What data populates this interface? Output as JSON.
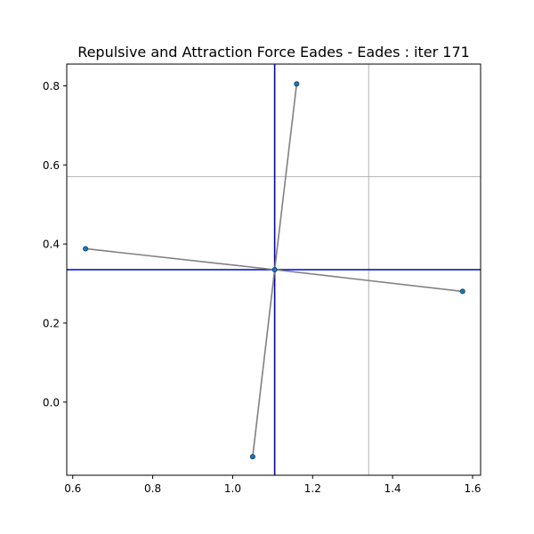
{
  "chart_data": {
    "type": "scatter",
    "title": "Repulsive and Attraction Force Eades - Eades : iter 171",
    "xlabel": "",
    "ylabel": "",
    "xlim": [
      0.585,
      1.62
    ],
    "ylim": [
      -0.185,
      0.855
    ],
    "x_ticks": [
      0.6,
      0.8,
      1.0,
      1.2,
      1.4,
      1.6
    ],
    "x_tick_labels": [
      "0.6",
      "0.8",
      "1.0",
      "1.2",
      "1.4",
      "1.6"
    ],
    "y_ticks": [
      0.0,
      0.2,
      0.4,
      0.6,
      0.8
    ],
    "y_tick_labels": [
      "0.0",
      "0.2",
      "0.4",
      "0.6",
      "0.8"
    ],
    "grid": false,
    "nodes": [
      {
        "x": 1.105,
        "y": 0.335
      },
      {
        "x": 1.16,
        "y": 0.805
      },
      {
        "x": 0.632,
        "y": 0.388
      },
      {
        "x": 1.575,
        "y": 0.28
      },
      {
        "x": 1.05,
        "y": -0.138
      }
    ],
    "edges": [
      [
        0,
        1
      ],
      [
        0,
        2
      ],
      [
        0,
        3
      ],
      [
        0,
        4
      ]
    ],
    "reference_lines": [
      {
        "orientation": "vertical",
        "value": 1.105,
        "color": "#0000cc"
      },
      {
        "orientation": "horizontal",
        "value": 0.335,
        "color": "#0000cc"
      },
      {
        "orientation": "vertical",
        "value": 1.34,
        "color": "#a0a0a0"
      },
      {
        "orientation": "horizontal",
        "value": 0.57,
        "color": "#a0a0a0"
      }
    ],
    "colors": {
      "node": "#1f77b4",
      "node_edge": "#0b3d66",
      "edge": "#808080"
    }
  }
}
